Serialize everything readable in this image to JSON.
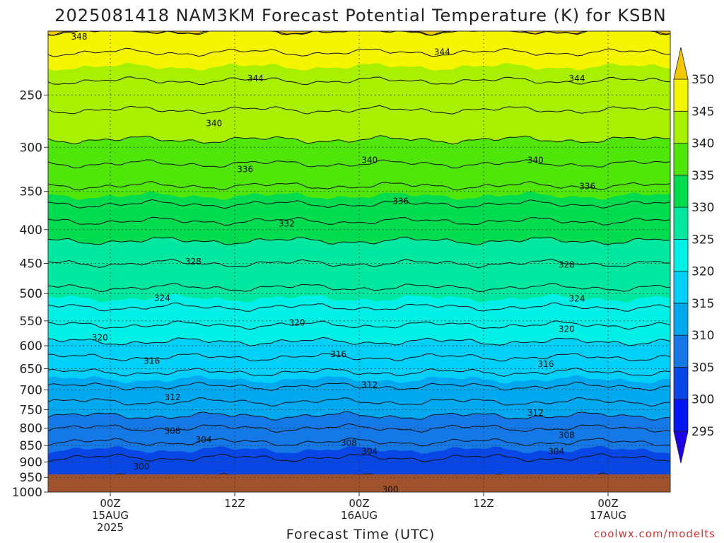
{
  "chart_data": {
    "type": "heatmap",
    "title": "2025081418 NAM3KM Forecast Potential Temperature (K) for KSBN",
    "xlabel": "Forecast Time (UTC)",
    "ylabel": "",
    "credit": "coolwx.com/modelts",
    "x_ticks": [
      {
        "hours": 6,
        "lines": [
          "00Z",
          "15AUG",
          "2025"
        ]
      },
      {
        "hours": 18,
        "lines": [
          "12Z"
        ]
      },
      {
        "hours": 30,
        "lines": [
          "00Z",
          "16AUG"
        ]
      },
      {
        "hours": 42,
        "lines": [
          "12Z"
        ]
      },
      {
        "hours": 54,
        "lines": [
          "00Z",
          "17AUG"
        ]
      }
    ],
    "x_range_hours": [
      0,
      60
    ],
    "y_ticks": [
      250,
      300,
      350,
      400,
      450,
      500,
      550,
      600,
      650,
      700,
      750,
      800,
      850,
      900,
      950,
      1000
    ],
    "y_range_hPa": [
      200,
      1000
    ],
    "colorbar": {
      "ticks": [
        295,
        300,
        305,
        310,
        315,
        320,
        325,
        330,
        335,
        340,
        345,
        350
      ],
      "bands": [
        {
          "min": 290,
          "max": 295,
          "color": "#1e00e6"
        },
        {
          "min": 295,
          "max": 300,
          "color": "#0014f0"
        },
        {
          "min": 300,
          "max": 305,
          "color": "#0846e6"
        },
        {
          "min": 305,
          "max": 310,
          "color": "#1478e6"
        },
        {
          "min": 310,
          "max": 315,
          "color": "#00a8f0"
        },
        {
          "min": 315,
          "max": 320,
          "color": "#00d0f8"
        },
        {
          "min": 320,
          "max": 325,
          "color": "#00f0e8"
        },
        {
          "min": 325,
          "max": 330,
          "color": "#00e8a0"
        },
        {
          "min": 330,
          "max": 335,
          "color": "#00dc50"
        },
        {
          "min": 335,
          "max": 340,
          "color": "#50e60a"
        },
        {
          "min": 340,
          "max": 345,
          "color": "#a8f000"
        },
        {
          "min": 345,
          "max": 350,
          "color": "#f5f500"
        },
        {
          "min": 350,
          "max": 355,
          "color": "#f0c800"
        }
      ]
    },
    "profile": {
      "pressure_hPa": [
        1000,
        950,
        900,
        850,
        800,
        750,
        700,
        650,
        600,
        550,
        500,
        450,
        400,
        350,
        300,
        250,
        200
      ],
      "theta_K": [
        300.5,
        302,
        303.5,
        305.5,
        308,
        311,
        313.5,
        316.5,
        319.5,
        322.5,
        325.5,
        328,
        331,
        335.5,
        339.5,
        343,
        347.5
      ]
    },
    "contour_levels_labeled": [
      {
        "label": "300",
        "hours": 9,
        "pressure": 915
      },
      {
        "label": "300",
        "hours": 33,
        "pressure": 992
      },
      {
        "label": "304",
        "hours": 15,
        "pressure": 833
      },
      {
        "label": "304",
        "hours": 31,
        "pressure": 868
      },
      {
        "label": "304",
        "hours": 49,
        "pressure": 868
      },
      {
        "label": "308",
        "hours": 12,
        "pressure": 808
      },
      {
        "label": "308",
        "hours": 29,
        "pressure": 842
      },
      {
        "label": "308",
        "hours": 50,
        "pressure": 820
      },
      {
        "label": "312",
        "hours": 12,
        "pressure": 718
      },
      {
        "label": "312",
        "hours": 31,
        "pressure": 688
      },
      {
        "label": "312",
        "hours": 47,
        "pressure": 758
      },
      {
        "label": "316",
        "hours": 10,
        "pressure": 633
      },
      {
        "label": "316",
        "hours": 28,
        "pressure": 618
      },
      {
        "label": "316",
        "hours": 48,
        "pressure": 640
      },
      {
        "label": "320",
        "hours": 5,
        "pressure": 583
      },
      {
        "label": "320",
        "hours": 24,
        "pressure": 554
      },
      {
        "label": "320",
        "hours": 50,
        "pressure": 566
      },
      {
        "label": "324",
        "hours": 11,
        "pressure": 508
      },
      {
        "label": "324",
        "hours": 51,
        "pressure": 509
      },
      {
        "label": "328",
        "hours": 14,
        "pressure": 447
      },
      {
        "label": "328",
        "hours": 50,
        "pressure": 452
      },
      {
        "label": "332",
        "hours": 23,
        "pressure": 392
      },
      {
        "label": "336",
        "hours": 19,
        "pressure": 324
      },
      {
        "label": "336",
        "hours": 34,
        "pressure": 362
      },
      {
        "label": "336",
        "hours": 52,
        "pressure": 344
      },
      {
        "label": "340",
        "hours": 16,
        "pressure": 276
      },
      {
        "label": "340",
        "hours": 31,
        "pressure": 314
      },
      {
        "label": "340",
        "hours": 47,
        "pressure": 314
      },
      {
        "label": "344",
        "hours": 20,
        "pressure": 236
      },
      {
        "label": "344",
        "hours": 38,
        "pressure": 215
      },
      {
        "label": "344",
        "hours": 51,
        "pressure": 236
      },
      {
        "label": "348",
        "hours": 3,
        "pressure": 204
      }
    ],
    "grid": true
  }
}
